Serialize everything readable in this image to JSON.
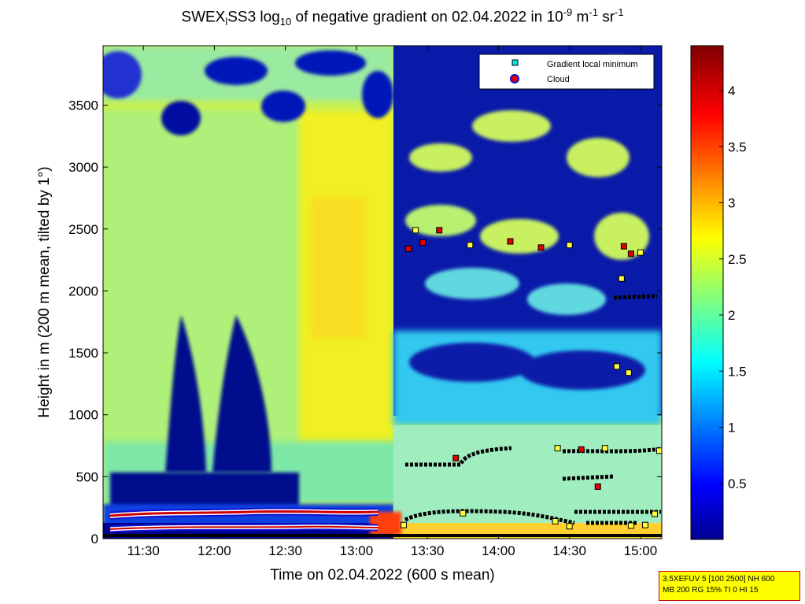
{
  "title": {
    "main": "SWEX",
    "sub1": "l",
    "part2": "SS3 log",
    "sub2": "10",
    "part3": " of negative gradient on 02.04.2022 in 10",
    "sup1": "-9",
    "part4": " m",
    "sup2": "-1",
    "part5": " sr",
    "sup3": "-1"
  },
  "stamp": {
    "line1": "3.5XEFUV 5 [100 2500] NH 600",
    "line2": "MB 200 RG 15% TI 0 HI 15"
  },
  "chart_data": {
    "type": "heatmap",
    "xlabel": "Time on 02.04.2022 (600 s mean)",
    "ylabel": "Height in m (200 m mean, tilted by 1°)",
    "x_ticks": [
      "11:30",
      "12:00",
      "12:30",
      "13:00",
      "13:30",
      "14:00",
      "14:30",
      "15:00"
    ],
    "x_tick_values": [
      "11:30",
      "12:00",
      "12:30",
      "13:00",
      "13:30",
      "14:00",
      "14:30",
      "15:00"
    ],
    "y_ticks": [
      0,
      500,
      1000,
      1500,
      2000,
      2500,
      3000,
      3500
    ],
    "y_tick_labels": [
      "0",
      "500",
      "1000",
      "1500",
      "2000",
      "2500",
      "3000",
      "3500"
    ],
    "xlim": [
      "11:13",
      "15:09"
    ],
    "ylim": [
      0,
      3980
    ],
    "colorbar": {
      "range": [
        0.0,
        4.4
      ],
      "ticks": [
        0.5,
        1,
        1.5,
        2,
        2.5,
        3,
        3.5,
        4
      ],
      "tick_labels": [
        "0.5",
        "1",
        "1.5",
        "2",
        "2.5",
        "3",
        "3.5",
        "4"
      ],
      "colormap": "jet"
    },
    "legend": {
      "placement": "top-right",
      "entries": [
        {
          "label": "Gradient local minimum",
          "marker": "square",
          "color": "#00e5e5"
        },
        {
          "label": "Cloud",
          "marker": "circle",
          "color": "#e00000"
        }
      ]
    },
    "overlay_series": [
      {
        "name": "Gradient local minimum",
        "color": "#00e5e5",
        "points": [
          {
            "t": "13:20",
            "h": 110
          },
          {
            "t": "13:45",
            "h": 205
          },
          {
            "t": "14:24",
            "h": 140
          },
          {
            "t": "14:30",
            "h": 100
          },
          {
            "t": "14:56",
            "h": 105
          },
          {
            "t": "15:06",
            "h": 200
          },
          {
            "t": "15:02",
            "h": 110
          },
          {
            "t": "14:25",
            "h": 730
          },
          {
            "t": "14:45",
            "h": 730
          },
          {
            "t": "15:08",
            "h": 710
          },
          {
            "t": "14:50",
            "h": 1390
          },
          {
            "t": "14:55",
            "h": 1340
          },
          {
            "t": "14:30",
            "h": 2370
          },
          {
            "t": "15:00",
            "h": 2310
          },
          {
            "t": "13:48",
            "h": 2370
          },
          {
            "t": "14:52",
            "h": 2100
          },
          {
            "t": "13:25",
            "h": 2490
          }
        ]
      },
      {
        "name": "Cloud",
        "color": "#e00000",
        "points": [
          {
            "t": "13:22",
            "h": 2340
          },
          {
            "t": "13:28",
            "h": 2390
          },
          {
            "t": "13:35",
            "h": 2490
          },
          {
            "t": "14:05",
            "h": 2400
          },
          {
            "t": "14:18",
            "h": 2350
          },
          {
            "t": "14:53",
            "h": 2360
          },
          {
            "t": "14:56",
            "h": 2300
          },
          {
            "t": "13:42",
            "h": 650
          },
          {
            "t": "14:42",
            "h": 420
          },
          {
            "t": "14:35",
            "h": 720
          }
        ]
      }
    ]
  }
}
